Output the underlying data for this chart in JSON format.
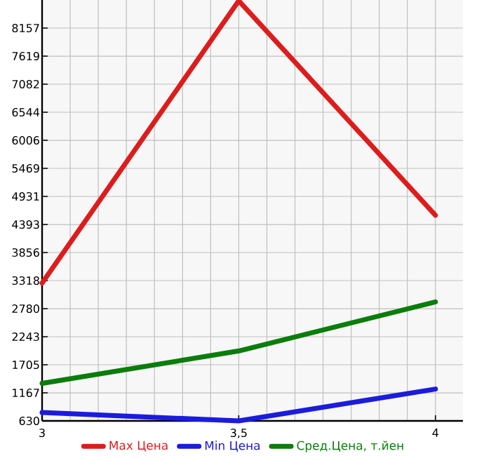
{
  "chart_data": {
    "type": "line",
    "x": [
      3,
      3.5,
      4
    ],
    "series": [
      {
        "name": "Max Цена",
        "color": "#dd1c1c",
        "values": [
          3270,
          8680,
          4570
        ]
      },
      {
        "name": "Min Цена",
        "color": "#1c1cdd",
        "values": [
          790,
          630,
          1240
        ]
      },
      {
        "name": "Сред.Цена, т.йен",
        "color": "#0a7d0a",
        "values": [
          1350,
          1970,
          2910
        ]
      }
    ],
    "xlim": [
      3,
      4.07
    ],
    "xticks": [
      3,
      {
        "value": 3.5,
        "label": "3,5"
      },
      4
    ],
    "ylim": [
      630,
      8695
    ],
    "yticks": [
      630,
      1167,
      1705,
      2243,
      2780,
      3318,
      3856,
      4393,
      4931,
      5469,
      6006,
      6544,
      7082,
      7619,
      8157
    ],
    "grid": true,
    "legend": "bottom",
    "marker": "none",
    "line_style": "solid"
  }
}
